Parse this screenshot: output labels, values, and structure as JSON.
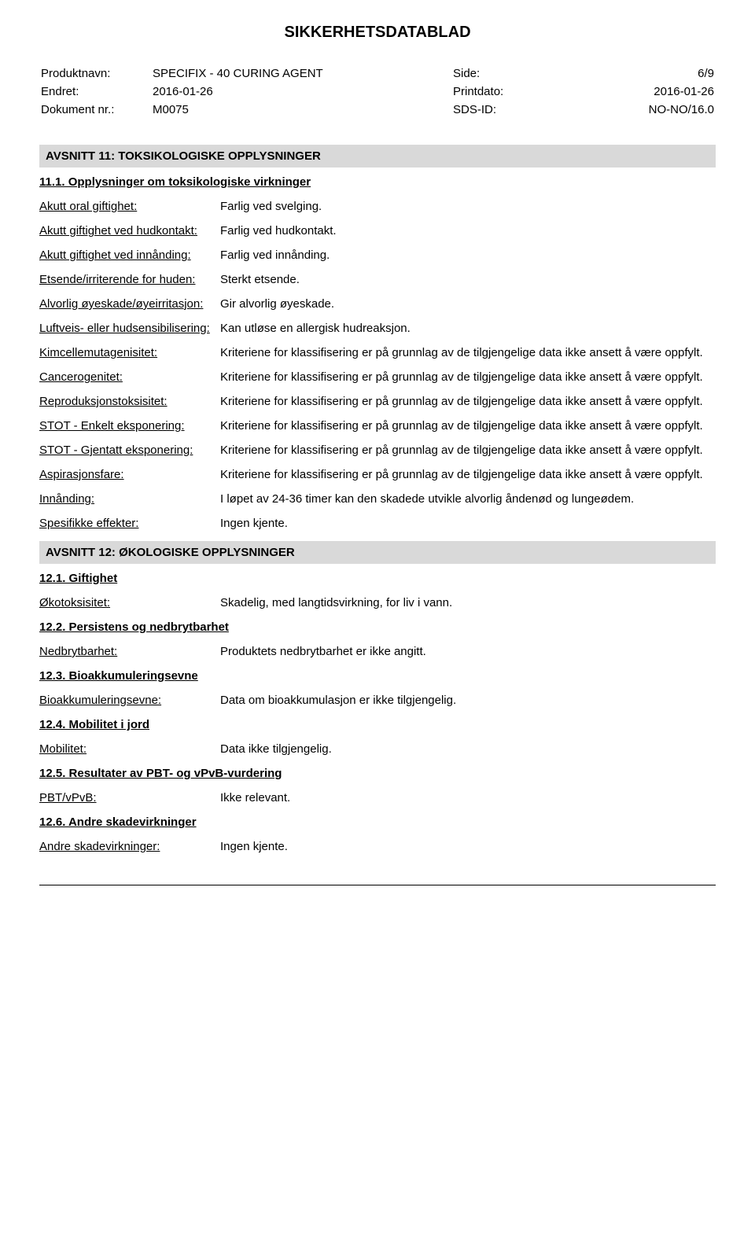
{
  "document_title": "SIKKERHETSDATABLAD",
  "header": {
    "product_label": "Produktnavn:",
    "product_value": "SPECIFIX - 40 CURING AGENT",
    "side_label": "Side:",
    "side_value": "6/9",
    "changed_label": "Endret:",
    "changed_value": "2016-01-26",
    "printdate_label": "Printdato:",
    "printdate_value": "2016-01-26",
    "docnr_label": "Dokument nr.:",
    "docnr_value": "M0075",
    "sdsid_label": "SDS-ID:",
    "sdsid_value": "NO-NO/16.0"
  },
  "section11": {
    "title": "AVSNITT 11: TOKSIKOLOGISKE OPPLYSNINGER",
    "sub1_title": "11.1. Opplysninger om toksikologiske virkninger",
    "rows": [
      {
        "label": "Akutt oral giftighet:",
        "value": "Farlig ved svelging."
      },
      {
        "label": "Akutt giftighet ved hudkontakt:",
        "value": "Farlig ved hudkontakt."
      },
      {
        "label": "Akutt giftighet ved innånding:",
        "value": "Farlig ved innånding."
      },
      {
        "label": "Etsende/irriterende for huden:",
        "value": "Sterkt etsende."
      },
      {
        "label": "Alvorlig øyeskade/øyeirritasjon:",
        "value": "Gir alvorlig øyeskade."
      },
      {
        "label": "Luftveis- eller hudsensibilisering:",
        "value": "Kan utløse en allergisk hudreaksjon."
      },
      {
        "label": "Kimcellemutagenisitet:",
        "value": "Kriteriene for klassifisering er på grunnlag av de tilgjengelige data ikke ansett å være oppfylt."
      },
      {
        "label": "Cancerogenitet:",
        "value": "Kriteriene for klassifisering er på grunnlag av de tilgjengelige data ikke ansett å være oppfylt."
      },
      {
        "label": "Reproduksjonstoksisitet:",
        "value": "Kriteriene for klassifisering er på grunnlag av de tilgjengelige data ikke ansett å være oppfylt."
      },
      {
        "label": "STOT - Enkelt eksponering:",
        "value": "Kriteriene for klassifisering er på grunnlag av de tilgjengelige data ikke ansett å være oppfylt."
      },
      {
        "label": "STOT - Gjentatt eksponering:",
        "value": "Kriteriene for klassifisering er på grunnlag av de tilgjengelige data ikke ansett å være oppfylt."
      },
      {
        "label": "Aspirasjonsfare:",
        "value": "Kriteriene for klassifisering er på grunnlag av de tilgjengelige data ikke ansett å være oppfylt."
      },
      {
        "label": "Innånding:",
        "value": "I løpet av 24-36 timer kan den skadede utvikle alvorlig åndenød og lungeødem."
      },
      {
        "label": "Spesifikke effekter:",
        "value": "Ingen kjente."
      }
    ]
  },
  "section12": {
    "title": "AVSNITT 12: ØKOLOGISKE OPPLYSNINGER",
    "subs": [
      {
        "title": "12.1. Giftighet",
        "rows": [
          {
            "label": "Økotoksisitet:",
            "value": "Skadelig, med langtidsvirkning, for liv i vann."
          }
        ]
      },
      {
        "title": "12.2. Persistens og nedbrytbarhet",
        "rows": [
          {
            "label": "Nedbrytbarhet:",
            "value": "Produktets nedbrytbarhet er ikke angitt."
          }
        ]
      },
      {
        "title": "12.3. Bioakkumuleringsevne",
        "rows": [
          {
            "label": "Bioakkumuleringsevne:",
            "value": "Data om bioakkumulasjon er ikke tilgjengelig."
          }
        ]
      },
      {
        "title": "12.4. Mobilitet i jord",
        "rows": [
          {
            "label": "Mobilitet:",
            "value": "Data ikke tilgjengelig."
          }
        ]
      },
      {
        "title": "12.5. Resultater av PBT- og vPvB-vurdering",
        "rows": [
          {
            "label": "PBT/vPvB:",
            "value": "Ikke relevant."
          }
        ]
      },
      {
        "title": "12.6. Andre skadevirkninger",
        "rows": [
          {
            "label": "Andre skadevirkninger:",
            "value": "Ingen kjente."
          }
        ]
      }
    ]
  }
}
